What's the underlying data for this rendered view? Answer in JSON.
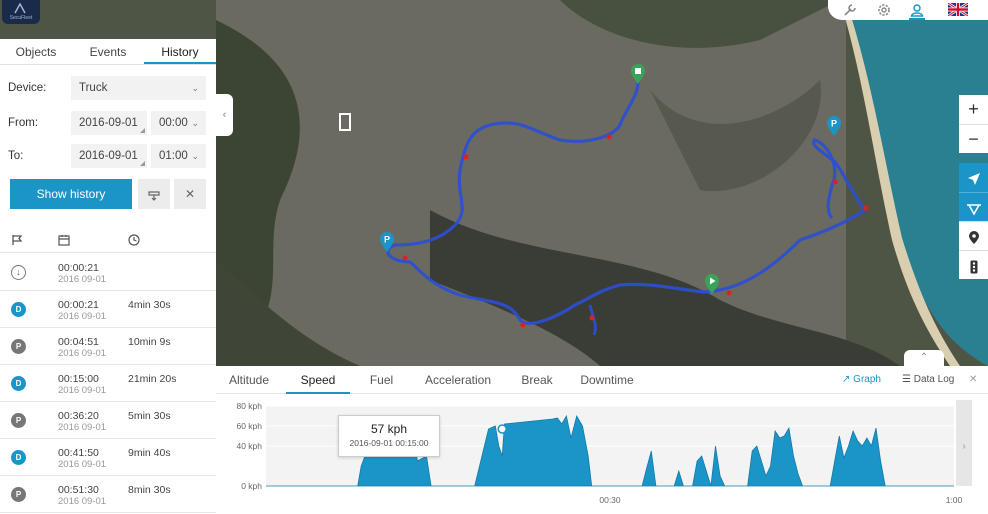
{
  "app": {
    "logo_text": "SecuFleet"
  },
  "topbar": {
    "icons": [
      "wrench-icon",
      "gear-icon",
      "user-icon"
    ],
    "language_flag": "uk-flag"
  },
  "sidebar": {
    "tabs": [
      {
        "label": "Objects"
      },
      {
        "label": "Events"
      },
      {
        "label": "History",
        "active": true
      }
    ],
    "device_label": "Device:",
    "device_value": "Truck",
    "from_label": "From:",
    "from_date": "2016-09-01",
    "from_time": "00:00",
    "to_label": "To:",
    "to_date": "2016-09-01",
    "to_time": "01:00",
    "show_button": "Show history",
    "list_header_icons": [
      "flag-icon",
      "calendar-icon",
      "clock-icon"
    ],
    "rows": [
      {
        "type": "start",
        "badge": "↓",
        "time": "00:00:21",
        "date": "2016 09-01",
        "duration": ""
      },
      {
        "type": "D",
        "badge": "D",
        "time": "00:00:21",
        "date": "2016 09-01",
        "duration": "4min 30s"
      },
      {
        "type": "P",
        "badge": "P",
        "time": "00:04:51",
        "date": "2016 09-01",
        "duration": "10min 9s"
      },
      {
        "type": "D",
        "badge": "D",
        "time": "00:15:00",
        "date": "2016 09-01",
        "duration": "21min 20s"
      },
      {
        "type": "P",
        "badge": "P",
        "time": "00:36:20",
        "date": "2016 09-01",
        "duration": "5min 30s"
      },
      {
        "type": "D",
        "badge": "D",
        "time": "00:41:50",
        "date": "2016 09-01",
        "duration": "9min 40s"
      },
      {
        "type": "P",
        "badge": "P",
        "time": "00:51:30",
        "date": "2016 09-01",
        "duration": "8min 30s"
      }
    ]
  },
  "map_controls": {
    "zoom_in": "+",
    "zoom_out": "−",
    "buttons": [
      "navigation-arrow-icon",
      "route-icon",
      "map-pin-icon",
      "traffic-light-icon"
    ]
  },
  "graph_panel": {
    "tabs": [
      {
        "label": "Altitude"
      },
      {
        "label": "Speed",
        "active": true
      },
      {
        "label": "Fuel"
      },
      {
        "label": "Acceleration"
      },
      {
        "label": "Break"
      },
      {
        "label": "Downtime"
      }
    ],
    "graph_label": "Graph",
    "datalog_label": "Data Log",
    "tooltip_value": "57 kph",
    "tooltip_time": "2016-09-01 00:15:00"
  },
  "chart_data": {
    "type": "area",
    "title": "",
    "xlabel": "",
    "ylabel": "",
    "ylim": [
      0,
      80
    ],
    "y_ticks": [
      "80 kph",
      "60 kph",
      "40 kph",
      "0 kph"
    ],
    "y_tick_values": [
      80,
      60,
      40,
      0
    ],
    "x_ticks": [
      "00:30",
      "1:00"
    ],
    "x_tick_values": [
      30,
      60
    ],
    "xlim": [
      0,
      60
    ],
    "color": "#1b95c7",
    "series": [
      {
        "x": [
          0,
          0.3,
          1.0,
          1.6,
          2.2,
          3.0,
          3.6,
          4.2,
          4.6,
          4.8,
          4.9,
          8.0,
          8.3,
          8.8,
          9.3,
          9.8,
          10.4,
          11.2,
          11.5,
          11.8,
          12.4,
          12.8,
          13.2,
          14.0,
          14.4,
          15.0,
          15.2,
          15.6,
          16.0,
          16.5,
          17.0,
          17.5,
          18.2,
          19.4,
          20.0,
          20.3,
          20.6,
          20.8,
          25.0,
          25.4,
          25.8,
          26.2,
          26.6,
          27.1,
          27.6,
          28.1,
          28.4,
          28.7,
          29.2,
          29.6,
          30.0,
          30.4,
          30.8,
          31.2,
          31.6,
          32.0,
          32.4,
          32.8,
          33.2,
          33.6,
          34.0,
          34.4,
          34.8,
          35.2,
          35.6,
          36.0,
          36.4,
          36.8,
          37.2,
          37.6,
          38.0,
          38.4,
          38.8,
          39.2,
          39.6,
          40.0,
          40.4,
          40.8,
          41.2,
          41.6,
          42.0,
          42.4,
          42.8,
          43.2,
          43.6,
          44.0,
          44.4,
          44.8,
          45.2,
          45.6,
          46.0,
          46.4,
          46.8,
          47.2,
          47.6,
          48.0,
          48.4,
          48.8,
          49.2,
          49.6,
          50.0,
          50.4,
          50.8,
          51.2,
          51.6,
          52.0,
          52.4,
          52.8,
          53.2,
          53.6,
          54.0,
          54.4,
          54.8,
          55.2,
          55.6,
          56.0,
          56.4,
          56.8,
          57.2,
          57.6,
          58.0,
          58.4,
          58.8,
          59.2,
          59.6,
          60.0
        ],
        "values": [
          0,
          0,
          0,
          0,
          0,
          0,
          0,
          0,
          0,
          0,
          0,
          0,
          20,
          35,
          45,
          58,
          50,
          55,
          45,
          32,
          40,
          60,
          25,
          30,
          0,
          0,
          0,
          0,
          0,
          0,
          0,
          0,
          0,
          57,
          60,
          40,
          30,
          62,
          67,
          68,
          62,
          70,
          48,
          70,
          60,
          30,
          0,
          0,
          0,
          0,
          0,
          0,
          0,
          0,
          0,
          0,
          0,
          0,
          18,
          35,
          0,
          0,
          0,
          0,
          0,
          15,
          0,
          0,
          0,
          25,
          30,
          15,
          0,
          40,
          10,
          0,
          0,
          0,
          0,
          0,
          0,
          35,
          40,
          25,
          10,
          20,
          55,
          48,
          50,
          58,
          30,
          12,
          0,
          0,
          0,
          0,
          0,
          0,
          0,
          25,
          50,
          28,
          40,
          55,
          45,
          40,
          48,
          40,
          58,
          25,
          0,
          0,
          0,
          0,
          0,
          0,
          0,
          0,
          0,
          0,
          0,
          0,
          0,
          0,
          0,
          0
        ]
      }
    ]
  }
}
